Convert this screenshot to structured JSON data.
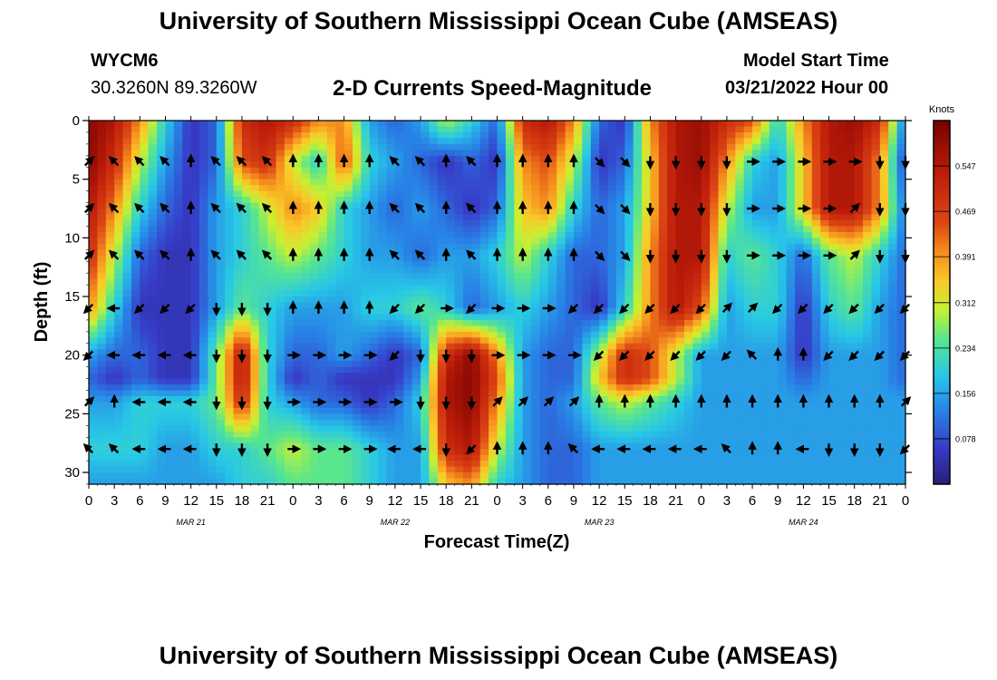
{
  "header": {
    "title": "University of Southern Mississippi Ocean Cube (AMSEAS)",
    "station_id": "WYCM6",
    "station_coords": "30.3260N  89.3260W",
    "subtitle": "2-D Currents Speed-Magnitude",
    "start_label": "Model Start Time",
    "start_value": "03/21/2022 Hour 00"
  },
  "footer": {
    "title": "University of Southern Mississippi Ocean Cube (AMSEAS)"
  },
  "chart_data": {
    "type": "heatmap",
    "title": "2-D Currents Speed-Magnitude",
    "xlabel": "Forecast Time(Z)",
    "ylabel": "Depth (ft)",
    "xlim": [
      0,
      96
    ],
    "ylim": [
      31,
      0
    ],
    "x_ticks": [
      "0",
      "3",
      "6",
      "9",
      "12",
      "15",
      "18",
      "21",
      "0",
      "3",
      "6",
      "9",
      "12",
      "15",
      "18",
      "21",
      "0",
      "3",
      "6",
      "9",
      "12",
      "15",
      "18",
      "21",
      "0",
      "3",
      "6",
      "9",
      "12",
      "15",
      "18",
      "21",
      "0"
    ],
    "day_labels": [
      "MAR 21",
      "MAR 22",
      "MAR 23",
      "MAR 24"
    ],
    "y_ticks": [
      0,
      5,
      10,
      15,
      20,
      25,
      30
    ],
    "colorbar": {
      "title": "Knots",
      "ticks": [
        "0.547",
        "0.469",
        "0.391",
        "0.312",
        "0.234",
        "0.156",
        "0.078"
      ],
      "range": [
        0,
        0.625
      ]
    },
    "arrow_depths": [
      3.5,
      7.5,
      11.5,
      16,
      20,
      24,
      28
    ],
    "arrow_hours": [
      0,
      3,
      6,
      9,
      12,
      15,
      18,
      21,
      24,
      27,
      30,
      33,
      36,
      39,
      42,
      45,
      48,
      51,
      54,
      57,
      60,
      63,
      66,
      69,
      72,
      75,
      78,
      81,
      84,
      87,
      90,
      93,
      96
    ],
    "speed_knots": [
      [
        0.6,
        0.55,
        0.4,
        0.2,
        0.05,
        0.1,
        0.5,
        0.55,
        0.5,
        0.4,
        0.4,
        0.15,
        0.1,
        0.15,
        0.3,
        0.2,
        0.1,
        0.5,
        0.55,
        0.4,
        0.1,
        0.05,
        0.4,
        0.55,
        0.58,
        0.5,
        0.45,
        0.2,
        0.4,
        0.55,
        0.58,
        0.5,
        0.1
      ],
      [
        0.6,
        0.5,
        0.3,
        0.15,
        0.05,
        0.1,
        0.45,
        0.5,
        0.3,
        0.2,
        0.45,
        0.2,
        0.15,
        0.1,
        0.05,
        0.1,
        0.05,
        0.4,
        0.45,
        0.3,
        0.05,
        0.1,
        0.35,
        0.55,
        0.58,
        0.4,
        0.2,
        0.15,
        0.35,
        0.55,
        0.55,
        0.4,
        0.05
      ],
      [
        0.55,
        0.4,
        0.2,
        0.1,
        0.05,
        0.15,
        0.2,
        0.3,
        0.4,
        0.35,
        0.2,
        0.15,
        0.1,
        0.15,
        0.1,
        0.05,
        0.1,
        0.35,
        0.4,
        0.2,
        0.1,
        0.15,
        0.35,
        0.55,
        0.55,
        0.3,
        0.15,
        0.15,
        0.35,
        0.55,
        0.55,
        0.4,
        0.1
      ],
      [
        0.5,
        0.3,
        0.1,
        0.05,
        0.05,
        0.15,
        0.2,
        0.25,
        0.3,
        0.25,
        0.2,
        0.15,
        0.15,
        0.1,
        0.15,
        0.15,
        0.2,
        0.3,
        0.2,
        0.1,
        0.1,
        0.15,
        0.4,
        0.55,
        0.55,
        0.2,
        0.25,
        0.2,
        0.1,
        0.25,
        0.3,
        0.2,
        0.1
      ],
      [
        0.4,
        0.2,
        0.05,
        0.05,
        0.05,
        0.15,
        0.25,
        0.2,
        0.15,
        0.15,
        0.15,
        0.2,
        0.2,
        0.25,
        0.2,
        0.1,
        0.15,
        0.2,
        0.15,
        0.1,
        0.05,
        0.2,
        0.4,
        0.55,
        0.45,
        0.15,
        0.2,
        0.2,
        0.05,
        0.2,
        0.25,
        0.15,
        0.1
      ],
      [
        0.15,
        0.1,
        0.1,
        0.05,
        0.05,
        0.25,
        0.55,
        0.2,
        0.1,
        0.1,
        0.15,
        0.1,
        0.05,
        0.1,
        0.5,
        0.6,
        0.4,
        0.15,
        0.1,
        0.1,
        0.3,
        0.5,
        0.45,
        0.3,
        0.15,
        0.15,
        0.15,
        0.15,
        0.05,
        0.15,
        0.15,
        0.15,
        0.1
      ],
      [
        0.1,
        0.05,
        0.1,
        0.05,
        0.05,
        0.25,
        0.55,
        0.2,
        0.05,
        0.1,
        0.05,
        0.05,
        0.05,
        0.15,
        0.55,
        0.6,
        0.45,
        0.15,
        0.1,
        0.1,
        0.35,
        0.5,
        0.45,
        0.3,
        0.15,
        0.15,
        0.15,
        0.15,
        0.1,
        0.15,
        0.15,
        0.15,
        0.1
      ],
      [
        0.15,
        0.15,
        0.2,
        0.2,
        0.2,
        0.25,
        0.5,
        0.2,
        0.15,
        0.1,
        0.1,
        0.05,
        0.1,
        0.2,
        0.55,
        0.6,
        0.4,
        0.15,
        0.1,
        0.15,
        0.25,
        0.3,
        0.25,
        0.2,
        0.15,
        0.15,
        0.15,
        0.15,
        0.15,
        0.15,
        0.15,
        0.15,
        0.15
      ],
      [
        0.2,
        0.2,
        0.2,
        0.15,
        0.15,
        0.2,
        0.2,
        0.25,
        0.3,
        0.25,
        0.25,
        0.2,
        0.15,
        0.15,
        0.5,
        0.55,
        0.3,
        0.15,
        0.1,
        0.1,
        0.15,
        0.15,
        0.15,
        0.15,
        0.15,
        0.15,
        0.15,
        0.15,
        0.15,
        0.15,
        0.15,
        0.15,
        0.15
      ],
      [
        0.15,
        0.15,
        0.15,
        0.15,
        0.15,
        0.15,
        0.2,
        0.2,
        0.25,
        0.25,
        0.25,
        0.2,
        0.15,
        0.15,
        0.35,
        0.4,
        0.2,
        0.15,
        0.1,
        0.1,
        0.15,
        0.15,
        0.15,
        0.15,
        0.15,
        0.15,
        0.15,
        0.15,
        0.15,
        0.15,
        0.15,
        0.15,
        0.15
      ]
    ],
    "speed_depths": [
      0,
      3.5,
      7.5,
      11.5,
      16,
      20,
      22,
      24,
      28,
      31
    ],
    "arrow_dirs_deg": [
      [
        45,
        315,
        315,
        315,
        0,
        315,
        315,
        315,
        0,
        0,
        0,
        0,
        315,
        315,
        0,
        315,
        0,
        0,
        0,
        0,
        135,
        135,
        180,
        180,
        180,
        180,
        90,
        90,
        90,
        90,
        90,
        180,
        180
      ],
      [
        45,
        315,
        315,
        315,
        0,
        315,
        315,
        315,
        0,
        0,
        0,
        0,
        315,
        315,
        0,
        315,
        0,
        0,
        0,
        0,
        135,
        135,
        180,
        180,
        180,
        180,
        90,
        90,
        90,
        90,
        45,
        180,
        180
      ],
      [
        45,
        315,
        315,
        315,
        0,
        315,
        315,
        315,
        0,
        0,
        0,
        0,
        315,
        315,
        0,
        315,
        0,
        0,
        0,
        0,
        135,
        135,
        180,
        180,
        180,
        180,
        90,
        90,
        90,
        90,
        45,
        180,
        180
      ],
      [
        225,
        270,
        225,
        225,
        225,
        180,
        180,
        180,
        0,
        0,
        0,
        0,
        225,
        225,
        90,
        225,
        90,
        90,
        90,
        225,
        225,
        225,
        225,
        225,
        225,
        45,
        45,
        225,
        225,
        225,
        225,
        225,
        225
      ],
      [
        225,
        270,
        270,
        270,
        270,
        180,
        180,
        180,
        90,
        90,
        90,
        90,
        225,
        180,
        180,
        180,
        90,
        90,
        90,
        90,
        225,
        225,
        225,
        225,
        225,
        225,
        315,
        0,
        0,
        225,
        225,
        225,
        225
      ],
      [
        45,
        0,
        270,
        270,
        270,
        180,
        180,
        180,
        90,
        90,
        90,
        90,
        90,
        180,
        180,
        180,
        45,
        45,
        45,
        45,
        0,
        0,
        0,
        0,
        0,
        0,
        0,
        0,
        0,
        0,
        0,
        0,
        45
      ],
      [
        315,
        315,
        270,
        270,
        270,
        180,
        180,
        180,
        90,
        90,
        90,
        90,
        270,
        270,
        180,
        225,
        0,
        0,
        0,
        315,
        270,
        270,
        270,
        270,
        270,
        315,
        0,
        0,
        270,
        180,
        180,
        180,
        225
      ]
    ]
  }
}
